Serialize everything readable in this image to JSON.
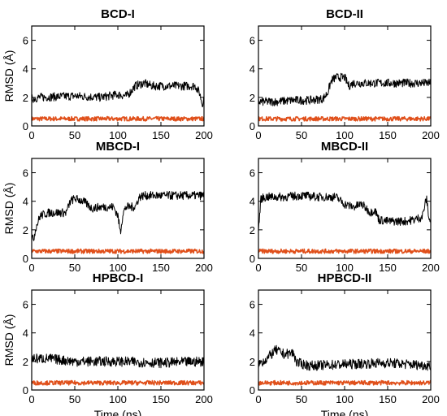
{
  "figure": {
    "colors": {
      "black_trace": "#000000",
      "orange_trace": "#e0501b",
      "frame": "#000000"
    },
    "x_ticks": [
      "0",
      "50",
      "100",
      "150",
      "200"
    ],
    "y_ticks": [
      "0",
      "2",
      "4",
      "6"
    ],
    "xlabel": "Time (ns)",
    "ylabel": "RMSD (Å)"
  },
  "chart_data": [
    {
      "type": "line",
      "title": "BCD-I",
      "xlabel": "",
      "ylabel": "RMSD (Å)",
      "xlim": [
        0,
        200
      ],
      "ylim": [
        0,
        7
      ],
      "grid": false,
      "series": [
        {
          "color": "#000000",
          "noise": 0.3,
          "x": [
            0,
            10,
            50,
            80,
            100,
            110,
            115,
            120,
            130,
            140,
            150,
            170,
            190,
            195,
            198,
            200
          ],
          "y": [
            1.9,
            2.0,
            2.1,
            2.0,
            2.2,
            2.1,
            2.4,
            2.8,
            3.0,
            2.8,
            2.8,
            2.8,
            2.8,
            2.3,
            1.5,
            2.0
          ]
        },
        {
          "color": "#e0501b",
          "noise": 0.15,
          "x": [
            0,
            200
          ],
          "y": [
            0.5,
            0.5
          ]
        }
      ]
    },
    {
      "type": "line",
      "title": "BCD-II",
      "xlabel": "",
      "ylabel": "",
      "xlim": [
        0,
        200
      ],
      "ylim": [
        0,
        7
      ],
      "grid": false,
      "series": [
        {
          "color": "#000000",
          "noise": 0.3,
          "x": [
            0,
            20,
            40,
            60,
            75,
            80,
            85,
            90,
            100,
            105,
            110,
            130,
            150,
            170,
            200
          ],
          "y": [
            1.7,
            1.7,
            1.8,
            1.8,
            1.9,
            2.3,
            3.2,
            3.4,
            3.4,
            2.8,
            3.0,
            3.0,
            3.0,
            3.0,
            3.0
          ]
        },
        {
          "color": "#e0501b",
          "noise": 0.15,
          "x": [
            0,
            200
          ],
          "y": [
            0.5,
            0.5
          ]
        }
      ]
    },
    {
      "type": "line",
      "title": "MBCD-I",
      "xlabel": "",
      "ylabel": "RMSD (Å)",
      "xlim": [
        0,
        200
      ],
      "ylim": [
        0,
        7
      ],
      "grid": false,
      "series": [
        {
          "color": "#000000",
          "noise": 0.3,
          "x": [
            0,
            2,
            5,
            10,
            20,
            40,
            45,
            50,
            60,
            70,
            80,
            95,
            100,
            103,
            106,
            110,
            120,
            125,
            130,
            150,
            200
          ],
          "y": [
            1.5,
            1.3,
            2.2,
            3.0,
            3.2,
            3.2,
            4.0,
            4.2,
            4.0,
            3.5,
            3.6,
            3.6,
            3.0,
            1.8,
            3.2,
            3.6,
            3.6,
            4.3,
            4.4,
            4.4,
            4.4
          ]
        },
        {
          "color": "#e0501b",
          "noise": 0.15,
          "x": [
            0,
            200
          ],
          "y": [
            0.5,
            0.5
          ]
        }
      ]
    },
    {
      "type": "line",
      "title": "MBCD-II",
      "xlabel": "",
      "ylabel": "",
      "xlim": [
        0,
        200
      ],
      "ylim": [
        0,
        7
      ],
      "grid": false,
      "series": [
        {
          "color": "#000000",
          "noise": 0.3,
          "x": [
            0,
            3,
            10,
            30,
            50,
            70,
            90,
            100,
            110,
            120,
            130,
            135,
            140,
            150,
            170,
            180,
            190,
            195,
            198,
            200
          ],
          "y": [
            2.0,
            4.2,
            4.3,
            4.3,
            4.4,
            4.3,
            4.3,
            3.8,
            3.6,
            3.8,
            3.2,
            3.4,
            2.7,
            2.6,
            2.6,
            2.7,
            2.9,
            4.2,
            2.8,
            2.5
          ]
        },
        {
          "color": "#e0501b",
          "noise": 0.15,
          "x": [
            0,
            200
          ],
          "y": [
            0.5,
            0.5
          ]
        }
      ]
    },
    {
      "type": "line",
      "title": "HPBCD-I",
      "xlabel": "Time (ns)",
      "ylabel": "RMSD (Å)",
      "xlim": [
        0,
        200
      ],
      "ylim": [
        0,
        7
      ],
      "grid": false,
      "series": [
        {
          "color": "#000000",
          "noise": 0.35,
          "x": [
            0,
            20,
            50,
            100,
            150,
            200
          ],
          "y": [
            2.2,
            2.2,
            2.0,
            2.0,
            1.9,
            2.0
          ]
        },
        {
          "color": "#e0501b",
          "noise": 0.15,
          "x": [
            0,
            200
          ],
          "y": [
            0.5,
            0.5
          ]
        }
      ]
    },
    {
      "type": "line",
      "title": "HPBCD-II",
      "xlabel": "Time (ns)",
      "ylabel": "",
      "xlim": [
        0,
        200
      ],
      "ylim": [
        0,
        7
      ],
      "grid": false,
      "series": [
        {
          "color": "#000000",
          "noise": 0.35,
          "x": [
            0,
            10,
            20,
            30,
            40,
            45,
            60,
            100,
            150,
            200
          ],
          "y": [
            1.8,
            2.2,
            2.8,
            2.5,
            2.6,
            1.9,
            1.7,
            1.8,
            1.9,
            1.7
          ]
        },
        {
          "color": "#e0501b",
          "noise": 0.15,
          "x": [
            0,
            200
          ],
          "y": [
            0.5,
            0.5
          ]
        }
      ]
    }
  ]
}
